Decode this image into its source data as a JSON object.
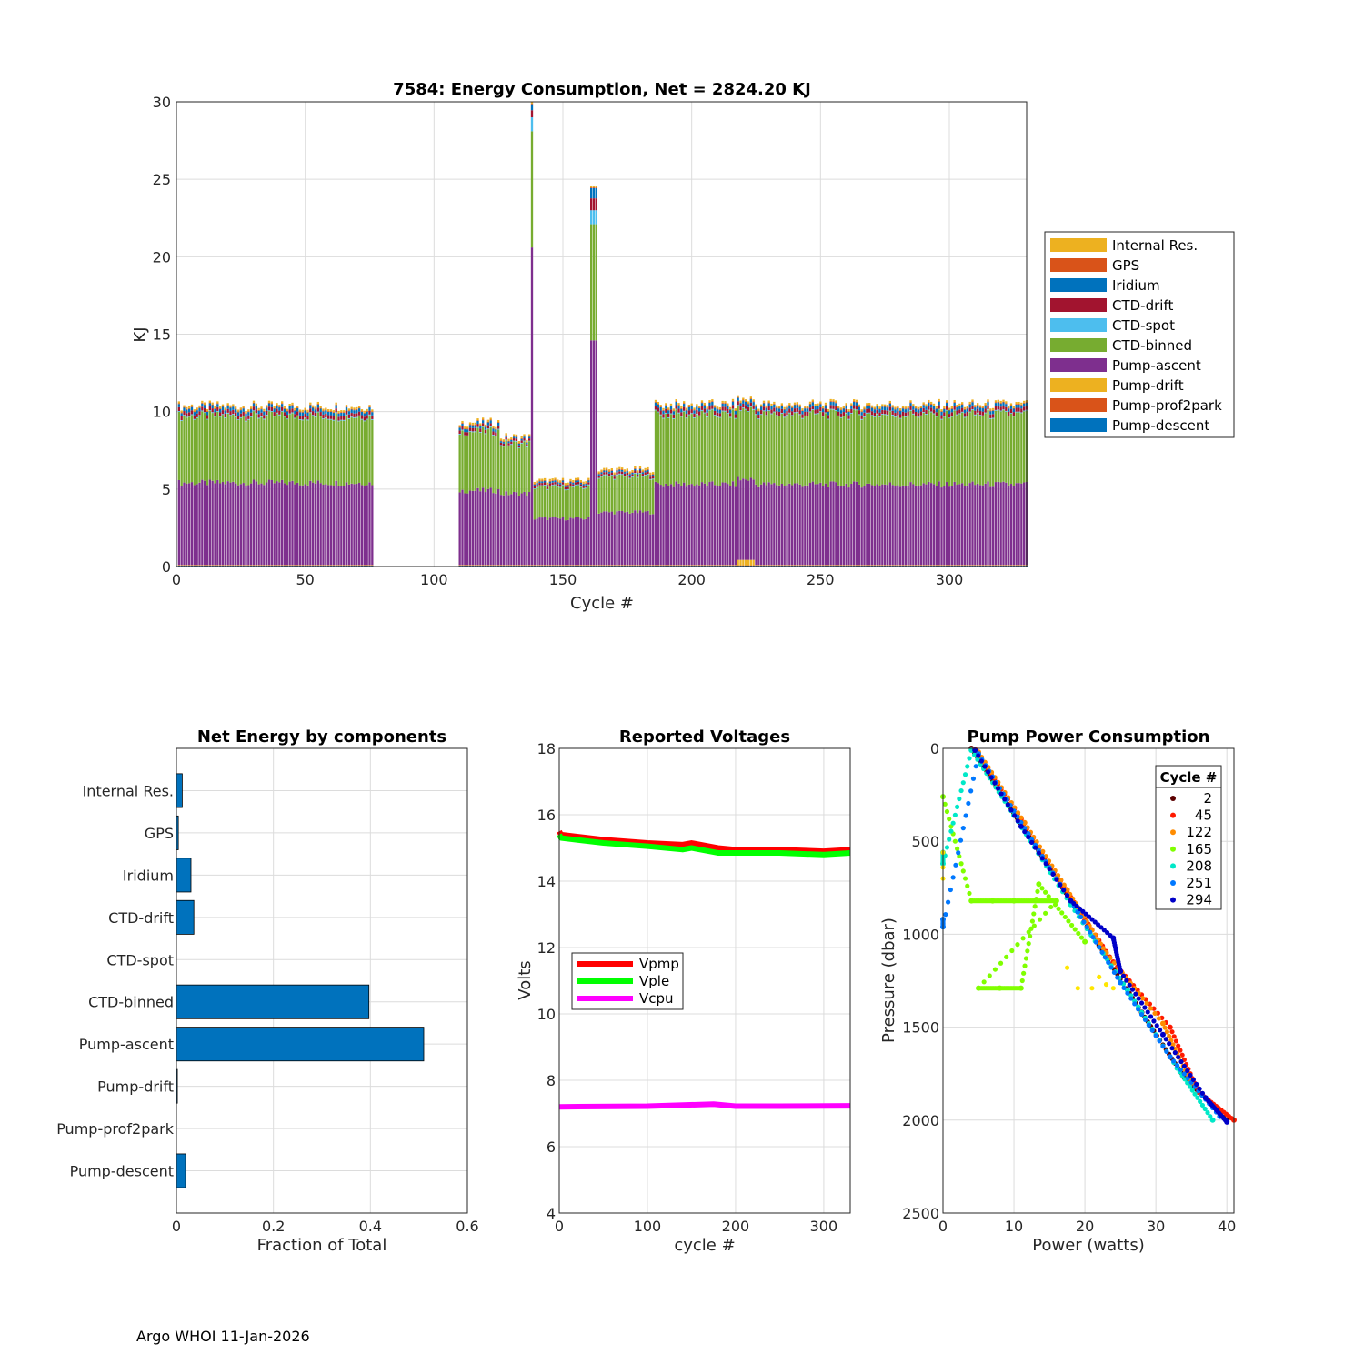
{
  "footer": "Argo WHOI 11-Jan-2026",
  "colors": {
    "blue": "#0072BD",
    "orange": "#D95319",
    "yellow": "#EDB120",
    "purple": "#7E2F8E",
    "green": "#77AC30",
    "cyan": "#4DBEEE",
    "darkred": "#A2142F"
  },
  "chart_data": [
    {
      "id": "energy",
      "type": "bar",
      "stacked": true,
      "title": "7584: Energy Consumption,  Net = 2824.20 KJ",
      "xlabel": "Cycle #",
      "ylabel": "KJ",
      "xlim": [
        0,
        330
      ],
      "ylim": [
        0,
        30
      ],
      "xticks": [
        0,
        50,
        100,
        150,
        200,
        250,
        300
      ],
      "yticks": [
        0,
        5,
        10,
        15,
        20,
        25,
        30
      ],
      "grid": true,
      "legend_position": "outside-right",
      "legend": [
        "Internal Res.",
        "GPS",
        "Iridium",
        "CTD-drift",
        "CTD-spot",
        "CTD-binned",
        "Pump-ascent",
        "Pump-drift",
        "Pump-prof2park",
        "Pump-descent"
      ],
      "legend_colors": [
        "#EDB120",
        "#D95319",
        "#0072BD",
        "#A2142F",
        "#4DBEEE",
        "#77AC30",
        "#7E2F8E",
        "#EDB120",
        "#D95319",
        "#0072BD"
      ],
      "stack_order": [
        "Pump-descent",
        "Pump-prof2park",
        "Pump-drift",
        "Pump-ascent",
        "CTD-binned",
        "CTD-spot",
        "CTD-drift",
        "Iridium",
        "GPS",
        "Internal Res."
      ],
      "cycle_ranges": [
        [
          1,
          76
        ],
        [
          110,
          330
        ]
      ],
      "approx_totals": [
        {
          "cycles": [
            1,
            76
          ],
          "total": 10.3,
          "pump_ascent": 5.3,
          "ctd_binned": 4.3
        },
        {
          "cycles": [
            110,
            125
          ],
          "total": 9.2,
          "pump_ascent": 4.8,
          "ctd_binned": 3.8
        },
        {
          "cycles": [
            125,
            137
          ],
          "total": 8.0,
          "pump_ascent": 4.6,
          "ctd_binned": 3.2
        },
        {
          "cycles": [
            138,
            138
          ],
          "total": 29.3,
          "pump_ascent": 20.5,
          "ctd_binned": 7.5
        },
        {
          "cycles": [
            139,
            160
          ],
          "total": 5.3,
          "pump_ascent": 3.0,
          "ctd_binned": 2.0
        },
        {
          "cycles": [
            161,
            163
          ],
          "total": 24.2,
          "pump_ascent": 14.5,
          "ctd_binned": 7.5
        },
        {
          "cycles": [
            164,
            185
          ],
          "total": 6.0,
          "pump_ascent": 3.4,
          "ctd_binned": 2.3
        },
        {
          "cycles": [
            186,
            330
          ],
          "total": 10.4,
          "pump_ascent": 5.2,
          "ctd_binned": 4.5
        }
      ]
    },
    {
      "id": "net-components",
      "type": "bar",
      "orientation": "horizontal",
      "title": "Net Energy by components",
      "xlabel": "Fraction of Total",
      "ylabel": "",
      "xlim": [
        0,
        0.6
      ],
      "xticks": [
        0,
        0.2,
        0.4,
        0.6
      ],
      "xticklabels": [
        "0",
        "0.2",
        "0.4",
        "0.6"
      ],
      "grid": true,
      "categories": [
        "Internal Res.",
        "GPS",
        "Iridium",
        "CTD-drift",
        "CTD-spot",
        "CTD-binned",
        "Pump-ascent",
        "Pump-drift",
        "Pump-prof2park",
        "Pump-descent"
      ],
      "values": [
        0.012,
        0.004,
        0.03,
        0.036,
        0.0,
        0.397,
        0.51,
        0.002,
        0.0,
        0.019
      ]
    },
    {
      "id": "voltages",
      "type": "line",
      "title": "Reported Voltages",
      "xlabel": "cycle #",
      "ylabel": "Volts",
      "xlim": [
        0,
        330
      ],
      "ylim": [
        4,
        18
      ],
      "xticks": [
        0,
        100,
        200,
        300
      ],
      "yticks": [
        4,
        6,
        8,
        10,
        12,
        14,
        16,
        18
      ],
      "grid": true,
      "legend_position": "middle-left",
      "series": [
        {
          "name": "Vpmp",
          "color": "#FF0000",
          "x": [
            0,
            2,
            50,
            100,
            140,
            150,
            180,
            200,
            250,
            300,
            330
          ],
          "values": [
            15.5,
            15.4,
            15.25,
            15.15,
            15.1,
            15.15,
            15.0,
            14.95,
            14.95,
            14.9,
            14.95
          ]
        },
        {
          "name": "Vple",
          "color": "#00FF00",
          "x": [
            0,
            2,
            50,
            100,
            140,
            150,
            180,
            200,
            250,
            300,
            330
          ],
          "values": [
            15.4,
            15.3,
            15.15,
            15.05,
            14.95,
            15.0,
            14.85,
            14.85,
            14.85,
            14.8,
            14.85
          ]
        },
        {
          "name": "Vcpu",
          "color": "#FF00FF",
          "x": [
            0,
            100,
            175,
            200,
            250,
            330
          ],
          "values": [
            7.2,
            7.22,
            7.28,
            7.22,
            7.22,
            7.23
          ]
        }
      ]
    },
    {
      "id": "pump-power",
      "type": "scatter",
      "title": "Pump Power Consumption",
      "xlabel": "Power (watts)",
      "ylabel": "Pressure (dbar)",
      "xlim": [
        0,
        41
      ],
      "ylim": [
        0,
        2500
      ],
      "y_reversed": true,
      "xticks": [
        0,
        10,
        20,
        30,
        40
      ],
      "yticks": [
        0,
        500,
        1000,
        1500,
        2000,
        2500
      ],
      "grid": true,
      "legend_title": "Cycle #",
      "legend_position": "top-right",
      "series": [
        {
          "name": "2",
          "color": "#5C0000",
          "points": [
            [
              4,
              0
            ],
            [
              10,
              350
            ],
            [
              16,
              700
            ],
            [
              22,
              1060
            ],
            [
              28,
              1420
            ],
            [
              34,
              1770
            ],
            [
              40,
              2000
            ]
          ]
        },
        {
          "name": "45",
          "color": "#FF1A00",
          "points": [
            [
              4.5,
              5
            ],
            [
              11,
              380
            ],
            [
              17,
              740
            ],
            [
              24,
              1150
            ],
            [
              32,
              1500
            ],
            [
              36,
              1850
            ],
            [
              41,
              2000
            ]
          ]
        },
        {
          "name": "122",
          "color": "#FF8C00",
          "points": [
            [
              5,
              20
            ],
            [
              11.5,
              400
            ],
            [
              17.5,
              760
            ],
            [
              23,
              1100
            ],
            [
              31,
              1480
            ],
            [
              35,
              1800
            ]
          ]
        },
        {
          "name": "165",
          "color": "#80FF00",
          "points": [
            [
              0,
              260
            ],
            [
              4,
              820
            ],
            [
              7,
              820
            ],
            [
              10,
              820
            ],
            [
              13,
              820
            ],
            [
              16,
              820
            ],
            [
              5,
              1290
            ],
            [
              8,
              1290
            ],
            [
              11,
              1290
            ],
            [
              13.5,
              730
            ],
            [
              20,
              1040
            ]
          ]
        },
        {
          "name": "208",
          "color": "#00E8C8",
          "points": [
            [
              0,
              560
            ],
            [
              0,
              620
            ],
            [
              4,
              10
            ],
            [
              10,
              360
            ],
            [
              18,
              840
            ],
            [
              26,
              1300
            ],
            [
              33,
              1720
            ],
            [
              38,
              2000
            ]
          ]
        },
        {
          "name": "251",
          "color": "#0078FF",
          "points": [
            [
              0,
              920
            ],
            [
              0,
              960
            ],
            [
              5,
              30
            ],
            [
              12,
              460
            ],
            [
              19,
              880
            ],
            [
              25,
              1260
            ],
            [
              32,
              1660
            ],
            [
              39,
              1980
            ]
          ]
        },
        {
          "name": "294",
          "color": "#0000C8",
          "points": [
            [
              4.5,
              10
            ],
            [
              11,
              420
            ],
            [
              18,
              820
            ],
            [
              24,
              1020
            ],
            [
              25,
              1200
            ],
            [
              31,
              1540
            ],
            [
              37,
              1880
            ],
            [
              40,
              2010
            ]
          ]
        }
      ],
      "extra_yellow_points": {
        "color": "#FFE600",
        "points": [
          [
            0,
            560
          ],
          [
            0,
            640
          ],
          [
            0,
            700
          ],
          [
            17.5,
            1180
          ],
          [
            22,
            1230
          ],
          [
            23,
            1270
          ],
          [
            19,
            1290
          ],
          [
            21,
            1290
          ],
          [
            24,
            1290
          ]
        ]
      }
    }
  ]
}
